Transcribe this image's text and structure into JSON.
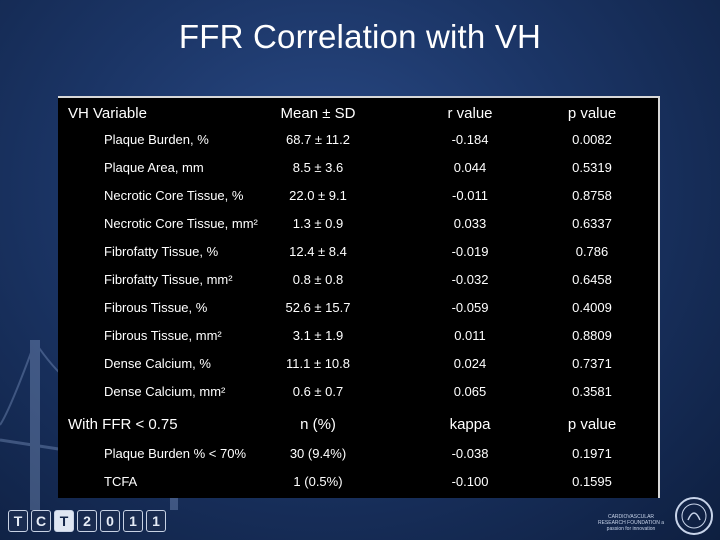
{
  "title": "FFR Correlation with VH",
  "vh_table": {
    "headers": [
      "VH Variable",
      "Mean ± SD",
      "r value",
      "p value"
    ],
    "rows": [
      {
        "label": "Plaque Burden, %",
        "mean": "68.7 ± 11.2",
        "r": "-0.184",
        "p": "0.0082"
      },
      {
        "label": "Plaque Area, mm",
        "mean": "8.5 ± 3.6",
        "r": "0.044",
        "p": "0.5319"
      },
      {
        "label": "Necrotic Core Tissue, %",
        "mean": "22.0 ± 9.1",
        "r": "-0.011",
        "p": "0.8758"
      },
      {
        "label": "Necrotic Core Tissue, mm²",
        "mean": "1.3 ± 0.9",
        "r": "0.033",
        "p": "0.6337"
      },
      {
        "label": "Fibrofatty Tissue, %",
        "mean": "12.4 ± 8.4",
        "r": "-0.019",
        "p": "0.786"
      },
      {
        "label": "Fibrofatty Tissue, mm²",
        "mean": "0.8 ± 0.8",
        "r": "-0.032",
        "p": "0.6458"
      },
      {
        "label": "Fibrous Tissue, %",
        "mean": "52.6 ± 15.7",
        "r": "-0.059",
        "p": "0.4009"
      },
      {
        "label": "Fibrous Tissue, mm²",
        "mean": "3.1 ± 1.9",
        "r": "0.011",
        "p": "0.8809"
      },
      {
        "label": "Dense Calcium, %",
        "mean": "11.1 ± 10.8",
        "r": "0.024",
        "p": "0.7371"
      },
      {
        "label": "Dense Calcium, mm²",
        "mean": "0.6 ± 0.7",
        "r": "0.065",
        "p": "0.3581"
      }
    ]
  },
  "ffr_table": {
    "headers": [
      "With FFR < 0.75",
      "n (%)",
      "kappa",
      "p value"
    ],
    "rows": [
      {
        "label": "Plaque Burden % < 70%",
        "n": "30 (9.4%)",
        "kappa": "-0.038",
        "p": "0.1971"
      },
      {
        "label": "TCFA",
        "n": "1 (0.5%)",
        "kappa": "-0.100",
        "p": "0.1595"
      }
    ]
  },
  "footer": {
    "tct_logo": [
      "T",
      "C",
      "T",
      "2",
      "0",
      "1",
      "1"
    ],
    "crf_logo": "CARDIOVASCULAR RESEARCH FOUNDATION a passion for innovation"
  }
}
